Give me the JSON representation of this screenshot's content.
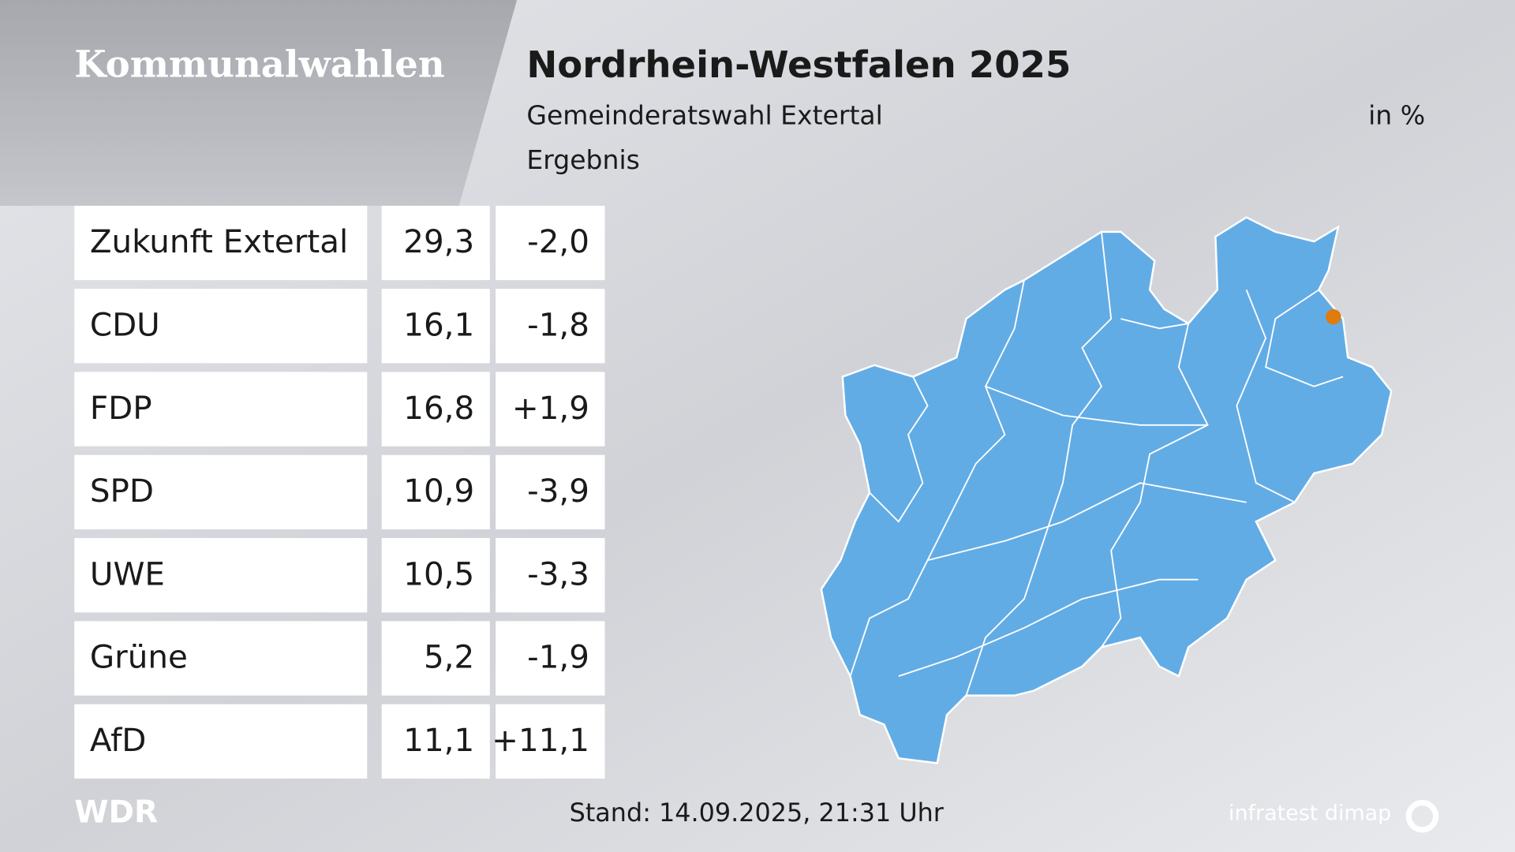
{
  "header": {
    "section": "Kommunalwahlen",
    "title": "Nordrhein-Westfalen 2025",
    "subtitle": "Gemeinderatswahl Extertal",
    "unit": "in %",
    "caption": "Ergebnis"
  },
  "table": {
    "rows": [
      [
        "Zukunft Extertal",
        "29,3",
        "-2,0"
      ],
      [
        "CDU",
        "16,1",
        "-1,8"
      ],
      [
        "FDP",
        "16,8",
        "+1,9"
      ],
      [
        "SPD",
        "10,9",
        "-3,9"
      ],
      [
        "UWE",
        "10,5",
        "-3,3"
      ],
      [
        "Grüne",
        "5,2",
        "-1,9"
      ],
      [
        "AfD",
        "11,1",
        "+11,1"
      ]
    ]
  },
  "footer": {
    "logo": "WDR",
    "timestamp": "Stand: 14.09.2025, 21:31 Uhr",
    "source": "infratest dimap"
  }
}
